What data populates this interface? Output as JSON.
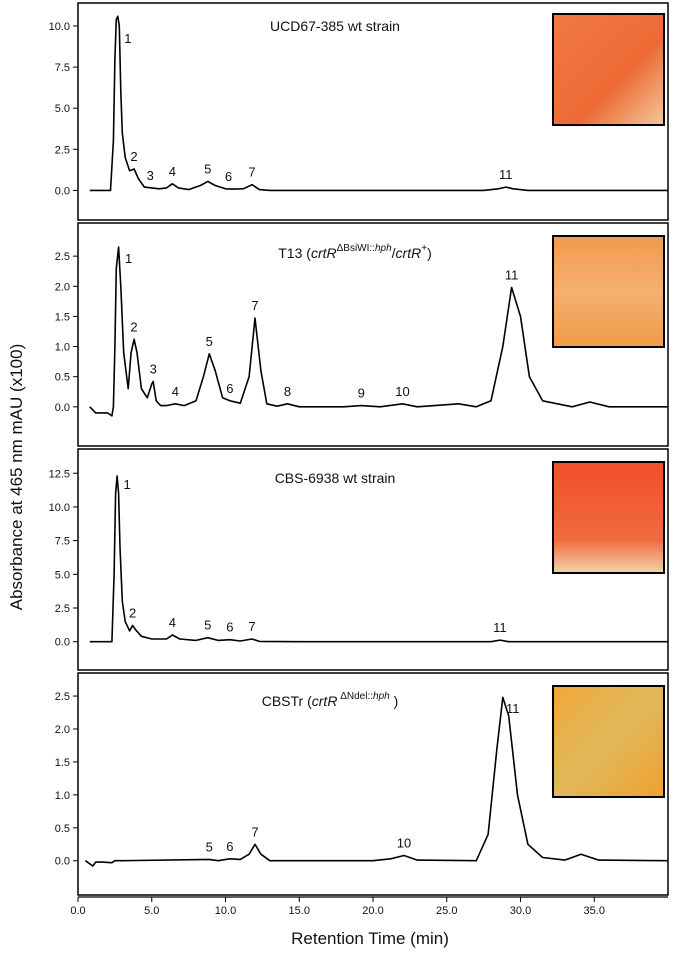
{
  "y_label": "Absorbance at 465 nm  mAU (x100)",
  "x_label": "Retention Time (min)",
  "xlim": [
    0,
    40
  ],
  "xticks": [
    {
      "value": 0,
      "label": "0.0"
    },
    {
      "value": 5,
      "label": "5.0"
    },
    {
      "value": 10,
      "label": "10.0"
    },
    {
      "value": 15,
      "label": "15.0"
    },
    {
      "value": 20,
      "label": "20.0"
    },
    {
      "value": 25,
      "label": "25.0"
    },
    {
      "value": 30,
      "label": "30.0"
    },
    {
      "value": 35,
      "label": "35.0"
    }
  ],
  "chart_data": [
    {
      "type": "line",
      "title": [
        "UCD67-385 wt strain"
      ],
      "ylim": [
        -1.8,
        11.4
      ],
      "yticks": [
        {
          "value": 0,
          "label": "0.0"
        },
        2.5,
        {
          "value": 5,
          "label": "5.0"
        },
        7.5,
        {
          "value": 10,
          "label": "10.0"
        }
      ],
      "color": "#000000",
      "x": [
        0.8,
        2.2,
        2.4,
        2.5,
        2.6,
        2.7,
        2.8,
        2.9,
        3.0,
        3.2,
        3.5,
        3.8,
        4.1,
        4.5,
        5.0,
        5.5,
        6.0,
        6.4,
        6.8,
        7.5,
        8.3,
        8.8,
        9.3,
        10.0,
        10.5,
        11.2,
        11.8,
        12.3,
        13.0,
        20.0,
        27.5,
        28.5,
        29.0,
        29.5,
        30.5,
        35.0,
        40.0
      ],
      "values": [
        0,
        0,
        3,
        8,
        10.4,
        10.6,
        10,
        6,
        3.5,
        2,
        1.2,
        1.3,
        0.7,
        0.2,
        0.15,
        0.1,
        0.15,
        0.4,
        0.15,
        0.05,
        0.3,
        0.55,
        0.3,
        0.1,
        0.08,
        0.1,
        0.35,
        0.05,
        0,
        0,
        0,
        0.1,
        0.2,
        0.1,
        0,
        0,
        0
      ],
      "peaks": [
        {
          "label": "1",
          "x": 2.7
        },
        {
          "label": "2",
          "x": 3.8
        },
        {
          "label": "3",
          "x": 4.9
        },
        {
          "label": "4",
          "x": 6.4
        },
        {
          "label": "5",
          "x": 8.8
        },
        {
          "label": "6",
          "x": 10.2
        },
        {
          "label": "7",
          "x": 11.8
        },
        {
          "label": "11",
          "x": 29.0
        }
      ]
    },
    {
      "type": "line",
      "title": [
        "T13 (",
        "crtR",
        "ΔBsiWI::",
        "hph",
        "/",
        "crtR",
        "+",
        ")"
      ],
      "ylim": [
        -0.65,
        3.05
      ],
      "yticks": [
        {
          "value": 0,
          "label": "0.0"
        },
        0.5,
        {
          "value": 1,
          "label": "1.0"
        },
        1.5,
        {
          "value": 2,
          "label": "2.0"
        },
        2.5
      ],
      "color": "#000000",
      "x": [
        0.8,
        1.2,
        2.0,
        2.3,
        2.4,
        2.5,
        2.6,
        2.75,
        2.9,
        3.1,
        3.4,
        3.6,
        3.8,
        4.0,
        4.3,
        4.7,
        5.0,
        5.1,
        5.3,
        5.6,
        6.0,
        6.6,
        7.2,
        8.0,
        8.5,
        8.9,
        9.3,
        9.8,
        10.3,
        11.0,
        11.6,
        12.0,
        12.4,
        12.8,
        13.5,
        14.2,
        15,
        18,
        19.2,
        20.5,
        22,
        23,
        25.8,
        27,
        28,
        28.8,
        29.4,
        30.0,
        30.6,
        31.5,
        33.5,
        34.7,
        36,
        40
      ],
      "values": [
        0,
        -0.1,
        -0.1,
        -0.15,
        0,
        1.0,
        2.3,
        2.65,
        2.0,
        0.9,
        0.3,
        0.9,
        1.12,
        0.9,
        0.3,
        0.15,
        0.38,
        0.42,
        0.1,
        0.02,
        0.02,
        0.05,
        0.02,
        0.1,
        0.5,
        0.88,
        0.6,
        0.15,
        0.1,
        0.06,
        0.5,
        1.47,
        0.6,
        0.05,
        0.01,
        0.05,
        0,
        0,
        0.02,
        0,
        0.05,
        0,
        0.05,
        0,
        0.1,
        1.0,
        1.98,
        1.5,
        0.5,
        0.1,
        0,
        0.08,
        0,
        0
      ],
      "peaks": [
        {
          "label": "1",
          "x": 2.75
        },
        {
          "label": "2",
          "x": 3.8
        },
        {
          "label": "3",
          "x": 5.1
        },
        {
          "label": "4",
          "x": 6.6
        },
        {
          "label": "5",
          "x": 8.9
        },
        {
          "label": "6",
          "x": 10.3
        },
        {
          "label": "7",
          "x": 12.0
        },
        {
          "label": "8",
          "x": 14.2
        },
        {
          "label": "9",
          "x": 19.2
        },
        {
          "label": "10",
          "x": 22.0
        },
        {
          "label": "11",
          "x": 29.4
        }
      ]
    },
    {
      "type": "line",
      "title": [
        "CBS-6938 wt strain"
      ],
      "ylim": [
        -2.1,
        14.3
      ],
      "yticks": [
        {
          "value": 0,
          "label": "0.0"
        },
        2.5,
        {
          "value": 5,
          "label": "5.0"
        },
        7.5,
        {
          "value": 10,
          "label": "10.0"
        },
        12.5
      ],
      "color": "#000000",
      "x": [
        0.8,
        2.3,
        2.45,
        2.55,
        2.65,
        2.75,
        2.85,
        3.0,
        3.2,
        3.5,
        3.7,
        3.9,
        4.3,
        5.0,
        6.0,
        6.4,
        6.9,
        8.0,
        8.8,
        9.5,
        10.3,
        11.0,
        11.8,
        12.3,
        15,
        28.0,
        28.6,
        29.2,
        35,
        40
      ],
      "values": [
        0,
        0,
        5,
        11,
        12.3,
        11,
        7,
        3,
        1.5,
        0.8,
        1.2,
        0.9,
        0.4,
        0.2,
        0.2,
        0.5,
        0.2,
        0.1,
        0.3,
        0.1,
        0.15,
        0.05,
        0.2,
        0.02,
        0,
        0,
        0.12,
        0,
        0,
        0
      ],
      "peaks": [
        {
          "label": "1",
          "x": 2.65
        },
        {
          "label": "2",
          "x": 3.7
        },
        {
          "label": "4",
          "x": 6.4
        },
        {
          "label": "5",
          "x": 8.8
        },
        {
          "label": "6",
          "x": 10.3
        },
        {
          "label": "7",
          "x": 11.8
        },
        {
          "label": "11",
          "x": 28.6
        }
      ]
    },
    {
      "type": "line",
      "title": [
        "CBSTr (",
        "crtR",
        " ΔNdel::",
        "hph",
        " )"
      ],
      "ylim": [
        -0.52,
        2.85
      ],
      "yticks": [
        {
          "value": 0,
          "label": "0.0"
        },
        0.5,
        {
          "value": 1,
          "label": "1.0"
        },
        1.5,
        {
          "value": 2,
          "label": "2.0"
        },
        2.5
      ],
      "color": "#000000",
      "x": [
        0.5,
        1.0,
        1.2,
        1.6,
        2.3,
        2.5,
        3,
        8.9,
        9.5,
        10.3,
        11.0,
        11.6,
        12.0,
        12.4,
        13.0,
        20,
        21.2,
        22.1,
        23,
        27,
        27.8,
        28.4,
        28.8,
        29.2,
        29.8,
        30.5,
        31.5,
        33.0,
        34.1,
        35.3,
        40
      ],
      "values": [
        0,
        -0.08,
        -0.02,
        -0.02,
        -0.03,
        0,
        0,
        0.02,
        0,
        0.03,
        0.02,
        0.1,
        0.25,
        0.1,
        0,
        0,
        0.03,
        0.08,
        0.01,
        0,
        0.4,
        1.7,
        2.48,
        2.2,
        1.0,
        0.25,
        0.05,
        0.01,
        0.1,
        0.01,
        0
      ],
      "peaks": [
        {
          "label": "5",
          "x": 8.9
        },
        {
          "label": "6",
          "x": 10.3
        },
        {
          "label": "7",
          "x": 12.0
        },
        {
          "label": "10",
          "x": 22.1
        },
        {
          "label": "11",
          "x": 28.8
        }
      ]
    }
  ]
}
